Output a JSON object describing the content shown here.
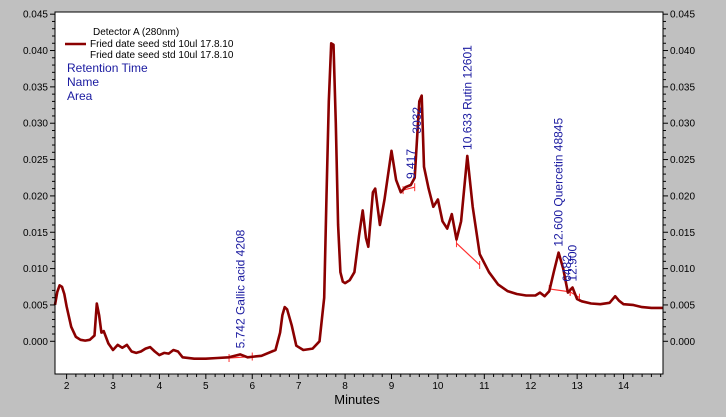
{
  "chart_data": {
    "type": "line",
    "xlabel": "Minutes",
    "ylabel": "",
    "xlim": [
      1.75,
      14.85
    ],
    "ylim": [
      -0.0045,
      0.0453
    ],
    "x_ticks": [
      "2",
      "3",
      "4",
      "5",
      "6",
      "7",
      "8",
      "9",
      "10",
      "11",
      "12",
      "13",
      "14"
    ],
    "y_ticks": [
      "0.000",
      "0.005",
      "0.010",
      "0.015",
      "0.020",
      "0.025",
      "0.030",
      "0.035",
      "0.040",
      "0.045"
    ],
    "grid": false,
    "legend": {
      "placement": "top-left",
      "detector": "Detector A (280nm)",
      "entries": [
        "Fried date seed std  10ul 17.8.10",
        "Fried date seed std  10ul 17.8.10"
      ]
    },
    "info_lines": [
      "Retention Time",
      "Name",
      "Area"
    ],
    "colors": {
      "trace": "#8b0000",
      "baseline": "#ff3030",
      "annotation": "#1a1aa0",
      "background": "#c0c0c0",
      "plot_area": "#ffffff"
    },
    "series": [
      {
        "x": [
          1.75,
          1.8,
          1.85,
          1.9,
          1.95,
          2.0,
          2.1,
          2.2,
          2.3,
          2.4,
          2.5,
          2.6,
          2.65,
          2.7,
          2.75,
          2.8,
          2.9,
          3.0,
          3.1,
          3.2,
          3.3,
          3.4,
          3.5,
          3.6,
          3.7,
          3.8,
          3.9,
          4.0,
          4.1,
          4.2,
          4.3,
          4.4,
          4.5,
          4.75,
          5.0,
          5.25,
          5.5,
          5.742,
          5.9,
          6.2,
          6.5,
          6.6,
          6.65,
          6.7,
          6.75,
          6.85,
          6.95,
          7.1,
          7.3,
          7.45,
          7.55,
          7.6,
          7.65,
          7.7,
          7.75,
          7.8,
          7.85,
          7.9,
          7.95,
          8.0,
          8.1,
          8.2,
          8.3,
          8.38,
          8.45,
          8.5,
          8.6,
          8.65,
          8.75,
          8.85,
          9.0,
          9.1,
          9.2,
          9.3,
          9.417,
          9.5,
          9.6,
          9.65,
          9.7,
          9.8,
          9.9,
          10.0,
          10.1,
          10.2,
          10.3,
          10.4,
          10.5,
          10.633,
          10.75,
          10.9,
          11.1,
          11.3,
          11.5,
          11.7,
          11.9,
          12.1,
          12.2,
          12.3,
          12.4,
          12.5,
          12.6,
          12.7,
          12.8,
          12.9,
          13.0,
          13.1,
          13.3,
          13.5,
          13.7,
          13.82,
          13.9,
          14.0,
          14.2,
          14.4,
          14.6,
          14.85
        ],
        "values": [
          0.005,
          0.0068,
          0.0077,
          0.0075,
          0.0065,
          0.0048,
          0.002,
          0.0006,
          0.0002,
          0.0001,
          0.0002,
          0.0008,
          0.0052,
          0.0036,
          0.0012,
          0.0014,
          -0.0003,
          -0.0012,
          -0.0005,
          -0.0009,
          -0.0005,
          -0.0014,
          -0.0016,
          -0.0014,
          -0.001,
          -0.0008,
          -0.0014,
          -0.0019,
          -0.0016,
          -0.0017,
          -0.0012,
          -0.0014,
          -0.0022,
          -0.0024,
          -0.0024,
          -0.0023,
          -0.0022,
          -0.0018,
          -0.0022,
          -0.002,
          -0.0012,
          0.0012,
          0.0036,
          0.0047,
          0.0044,
          0.0022,
          -0.0006,
          -0.0012,
          -0.001,
          0.0,
          0.006,
          0.02,
          0.033,
          0.041,
          0.0408,
          0.03,
          0.016,
          0.0095,
          0.0082,
          0.008,
          0.0084,
          0.0095,
          0.0145,
          0.018,
          0.0142,
          0.013,
          0.0205,
          0.021,
          0.016,
          0.0195,
          0.0262,
          0.0222,
          0.0205,
          0.0212,
          0.0215,
          0.0225,
          0.033,
          0.0338,
          0.024,
          0.021,
          0.0185,
          0.0195,
          0.0165,
          0.0155,
          0.0175,
          0.014,
          0.0165,
          0.0255,
          0.0185,
          0.012,
          0.0095,
          0.0078,
          0.0069,
          0.0065,
          0.0063,
          0.0063,
          0.0067,
          0.0062,
          0.0069,
          0.0096,
          0.0122,
          0.01,
          0.0067,
          0.0074,
          0.0058,
          0.0055,
          0.0052,
          0.0051,
          0.0053,
          0.0062,
          0.0056,
          0.0051,
          0.005,
          0.0047,
          0.0046,
          0.0046
        ]
      }
    ],
    "peak_labels": [
      {
        "x": 5.742,
        "text": "5.742  Gallic acid  4208"
      },
      {
        "x": 9.417,
        "text": "9.417"
      },
      {
        "x": 9.55,
        "text": "3032"
      },
      {
        "x": 10.633,
        "text": "10.633  Rutin  12601"
      },
      {
        "x": 12.6,
        "text": "12.600  Quercetin  48845"
      },
      {
        "x": 12.78,
        "text": "6482"
      },
      {
        "x": 12.9,
        "text": "12.900"
      }
    ],
    "baseline_segments": [
      {
        "x": [
          5.5,
          6.0
        ],
        "values": [
          -0.0023,
          -0.0021
        ]
      },
      {
        "x": [
          9.25,
          9.5
        ],
        "values": [
          0.0208,
          0.0212
        ]
      },
      {
        "x": [
          10.4,
          10.9
        ],
        "values": [
          0.0135,
          0.0105
        ]
      },
      {
        "x": [
          12.4,
          12.85
        ],
        "values": [
          0.0072,
          0.0068
        ]
      },
      {
        "x": [
          12.85,
          13.05
        ],
        "values": [
          0.0068,
          0.006
        ]
      }
    ]
  }
}
